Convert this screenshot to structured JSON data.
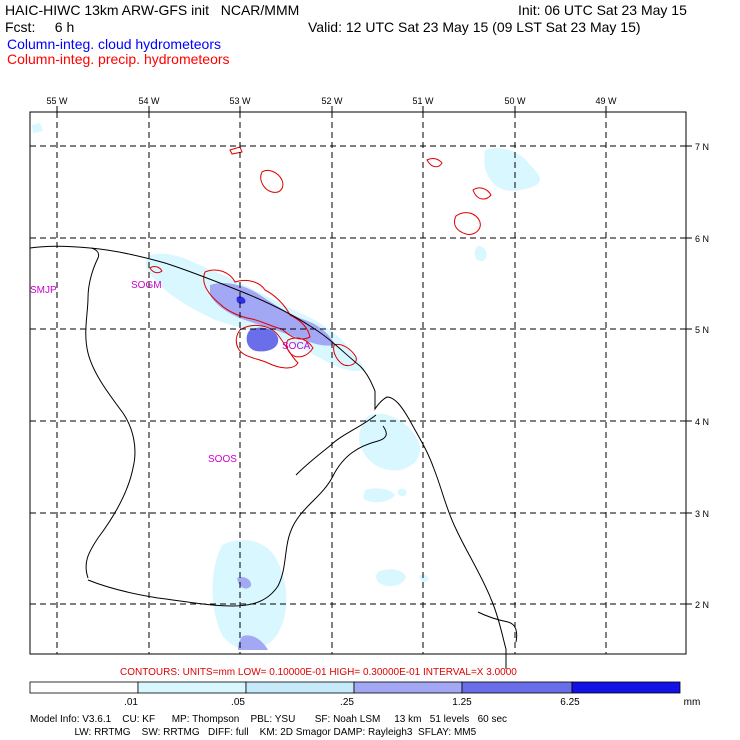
{
  "header": {
    "left_line1": "HAIC-HIWC 13km ARW-GFS init   NCAR/MMM",
    "left_line2": "Fcst:     6 h",
    "init_line": "Init: 06 UTC Sat 23 May 15",
    "valid_line": "Valid: 12 UTC Sat 23 May 15 (09 LST Sat 23 May 15)",
    "field_cloud": "Column-integ. cloud hydrometeors",
    "field_precip": "Column-integ. precip. hydrometeors",
    "field_cloud_color": "#0000ff",
    "field_precip_color": "#ff0000"
  },
  "map": {
    "lon_labels": [
      "55 W",
      "54 W",
      "53 W",
      "52 W",
      "51 W",
      "50 W",
      "49 W"
    ],
    "lat_labels": [
      "7 N",
      "6 N",
      "5 N",
      "4 N",
      "3 N",
      "2 N"
    ],
    "stations": [
      "SMJP",
      "SOGM",
      "SOCA",
      "SOOS"
    ],
    "station_color": "#cc00cc"
  },
  "contours_line": "CONTOURS:  UNITS=mm  LOW= 0.10000E-01  HIGH= 0.30000E-01  INTERVAL=X  3.0000",
  "colorbar": {
    "ticks": [
      ".01",
      ".05",
      ".25",
      "1.25",
      "6.25"
    ],
    "units": "mm",
    "colors": [
      "#ffffff",
      "#d9f7ff",
      "#c6eaf9",
      "#a3a8f5",
      "#6a6ee9",
      "#2d2fe0",
      "#0a0ae0"
    ]
  },
  "footer": {
    "line1": "Model Info: V3.6.1    CU: KF      MP: Thompson    PBL: YSU       SF: Noah LSM     13 km   51 levels   60 sec",
    "line2": "                LW: RRTMG    SW: RRTMG   DIFF: full    KM: 2D Smagor DAMP: Rayleigh3  SFLAY: MM5"
  }
}
